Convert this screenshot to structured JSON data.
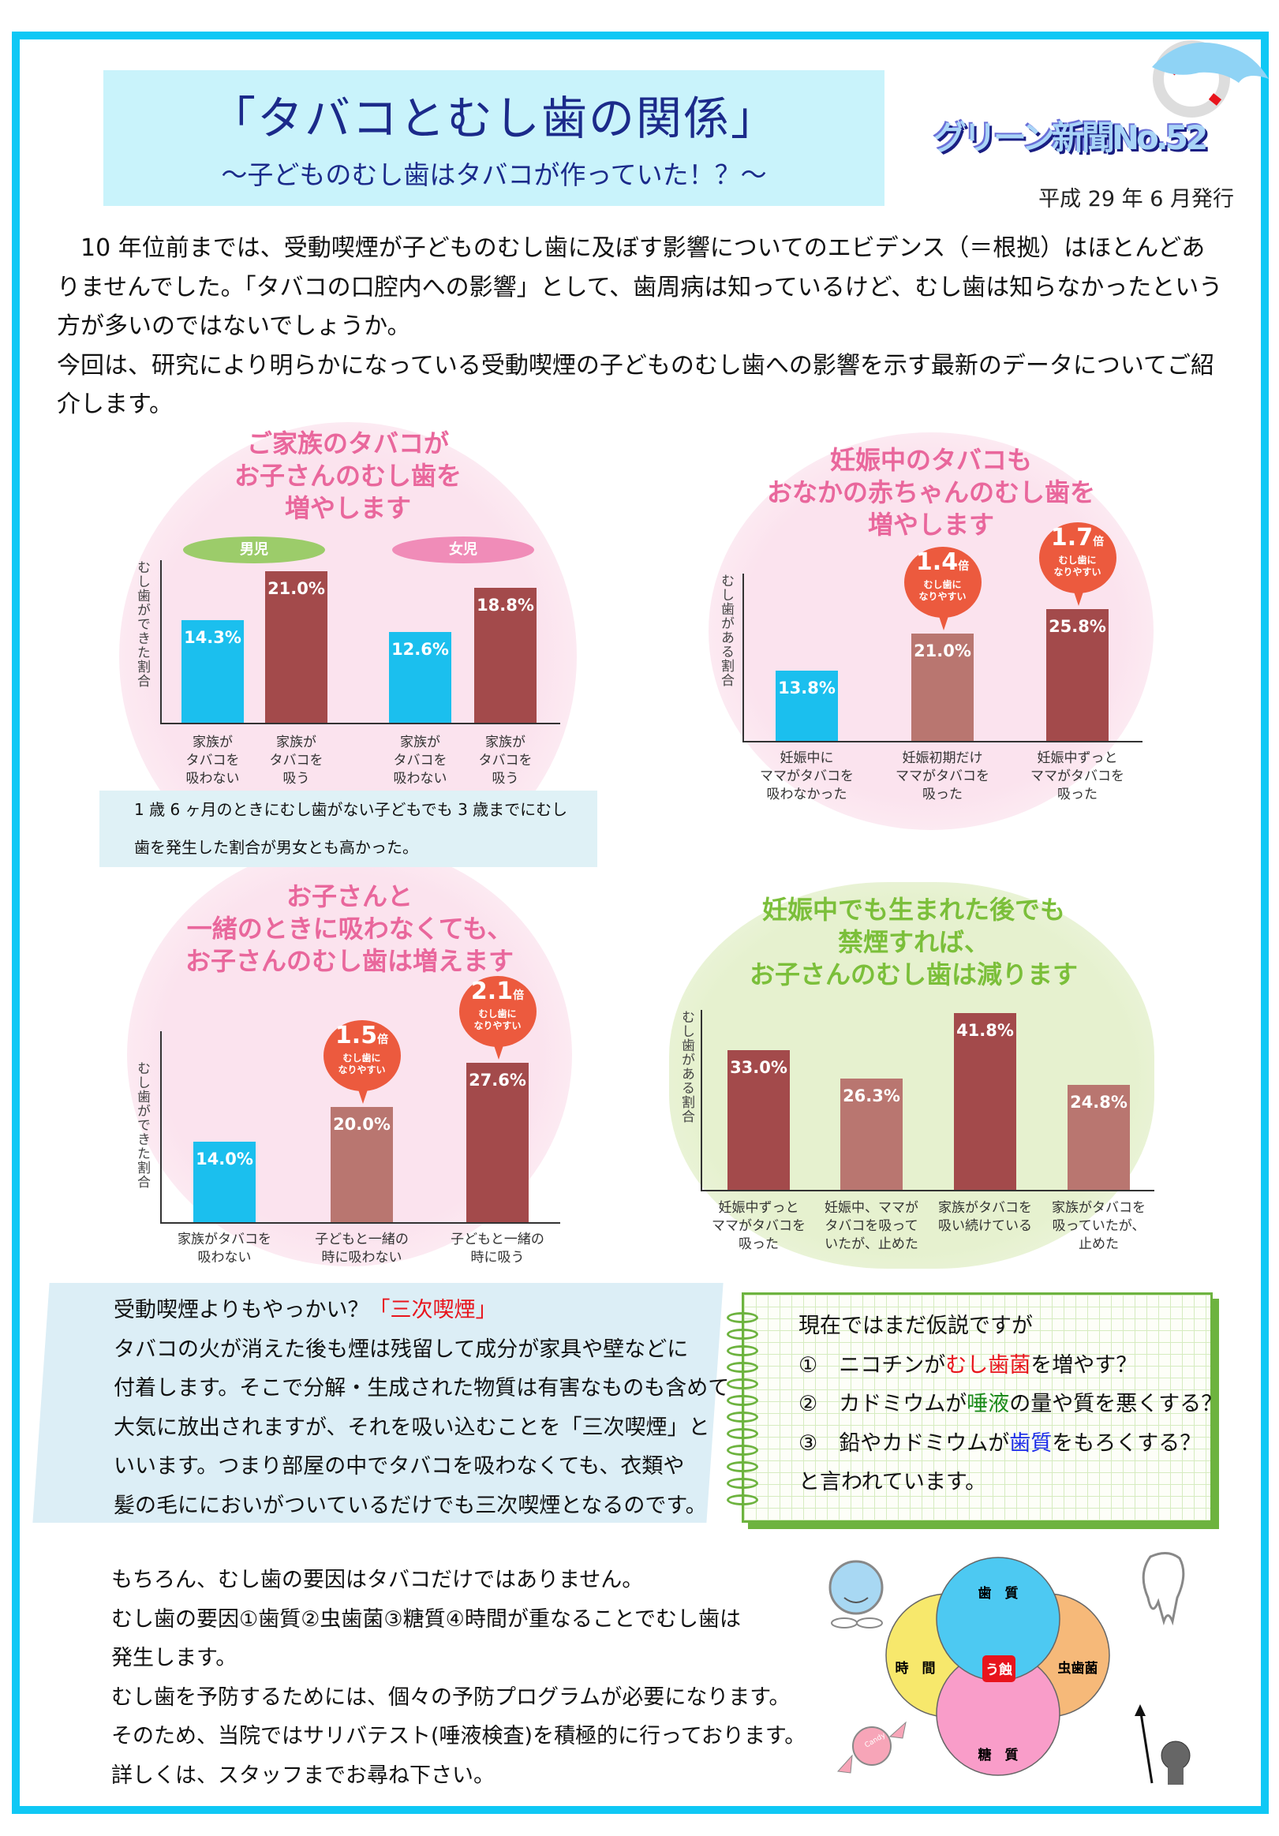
{
  "header": {
    "title": "「タバコとむし歯の関係」",
    "subtitle": "～子どものむし歯はタバコが作っていた！？～",
    "newsletter_name": "グリーン新聞No.52",
    "issue_date": "平成 29 年 6 月発行"
  },
  "intro": [
    "10 年位前までは、受動喫煙が子どものむし歯に及ぼす影響についてのエビデンス（＝根拠）はほとんどありませんでした。「タバコの口腔内への影響」として、歯周病は知っているけど、むし歯は知らなかったという方が多いのではないでしょうか。",
    "今回は、研究により明らかになっている受動喫煙の子どものむし歯への影響を示す最新のデータについてご紹介します。"
  ],
  "colors": {
    "blue_bar": "#1bbfee",
    "dark_bar": "#a34a4b",
    "light_bar": "#b97670",
    "bubble": "#ec5a3e",
    "frame": "#0fc8f5"
  },
  "chart_data": [
    {
      "type": "bar",
      "title": "ご家族のタバコが\nお子さんのむし歯を\n増やします",
      "ylabel": "むし歯ができた割合",
      "groups": [
        "男児",
        "女児"
      ],
      "categories": [
        "家族が\nタバコを\n吸わない",
        "家族が\nタバコを\n吸う",
        "家族が\nタバコを\n吸わない",
        "家族が\nタバコを\n吸う"
      ],
      "values": [
        14.3,
        21.0,
        12.6,
        18.8
      ],
      "value_labels": [
        "14.3%",
        "21.0%",
        "12.6%",
        "18.8%"
      ],
      "note": "1 歳 6 ヶ月のときにむし歯がない子どもでも 3 歳までにむし歯を発生した割合が男女とも高かった。",
      "note_lines": [
        "1 歳 6 ヶ月のときにむし歯がない子どもでも 3 歳までにむし",
        "歯を発生した割合が男女とも高かった。"
      ]
    },
    {
      "type": "bar",
      "title": "妊娠中のタバコも\nおなかの赤ちゃんのむし歯を\n増やします",
      "ylabel": "むし歯がある割合",
      "categories": [
        "妊娠中に\nママがタバコを\n吸わなかった",
        "妊娠初期だけ\nママがタバコを\n吸った",
        "妊娠中ずっと\nママがタバコを\n吸った"
      ],
      "values": [
        13.8,
        21.0,
        25.8
      ],
      "value_labels": [
        "13.8%",
        "21.0%",
        "25.8%"
      ],
      "annotations": [
        {
          "bar": 1,
          "multiplier": "1.4",
          "unit": "倍",
          "note": "むし歯に\nなりやすい"
        },
        {
          "bar": 2,
          "multiplier": "1.7",
          "unit": "倍",
          "note": "むし歯に\nなりやすい"
        }
      ]
    },
    {
      "type": "bar",
      "title": "お子さんと\n一緒のときに吸わなくても、\nお子さんのむし歯は増えます",
      "ylabel": "むし歯ができた割合",
      "categories": [
        "家族がタバコを\n吸わない",
        "子どもと一緒の\n時に吸わない",
        "子どもと一緒の\n時に吸う"
      ],
      "values": [
        14.0,
        20.0,
        27.6
      ],
      "value_labels": [
        "14.0%",
        "20.0%",
        "27.6%"
      ],
      "annotations": [
        {
          "bar": 1,
          "multiplier": "1.5",
          "unit": "倍",
          "note": "むし歯に\nなりやすい"
        },
        {
          "bar": 2,
          "multiplier": "2.1",
          "unit": "倍",
          "note": "むし歯に\nなりやすい"
        }
      ]
    },
    {
      "type": "bar",
      "title": "妊娠中でも生まれた後でも\n禁煙すれば、\nお子さんのむし歯は減ります",
      "ylabel": "むし歯がある割合",
      "categories": [
        "妊娠中ずっと\nママがタバコを\n吸った",
        "妊娠中、ママが\nタバコを吸って\nいたが、止めた",
        "家族がタバコを\n吸い続けている",
        "家族がタバコを\n吸っていたが、\n止めた"
      ],
      "values": [
        33.0,
        26.3,
        41.8,
        24.8
      ],
      "value_labels": [
        "33.0%",
        "26.3%",
        "41.8%",
        "24.8%"
      ]
    }
  ],
  "third_hand_smoke": {
    "lead": "受動喫煙よりもやっかい？",
    "highlight": "「三次喫煙」",
    "lines": [
      "タバコの火が消えた後も煙は残留して成分が家具や壁などに",
      "付着します。そこで分解・生成された物質は有害なものも含めて",
      "大気に放出されますが、それを吸い込むことを「三次喫煙」と",
      "いいます。つまり部屋の中でタバコを吸わなくても、衣類や",
      "髪の毛ににおいがついているだけでも三次喫煙となるのです。"
    ]
  },
  "hypotheses": {
    "intro": "現在ではまだ仮説ですが",
    "items": [
      {
        "num": "①",
        "pre": "ニコチンが",
        "key": "むし歯菌",
        "post": "を増やす？",
        "key_color": "#e8141c"
      },
      {
        "num": "②",
        "pre": "カドミウムが",
        "key": "唾液",
        "post": "の量や質を悪くする？",
        "key_color": "#1a8a1a"
      },
      {
        "num": "③",
        "pre": "鉛やカドミウムが",
        "key": "歯質",
        "post": "をもろくする？",
        "key_color": "#1a2ae8"
      }
    ],
    "outro": "と言われています。"
  },
  "closing": [
    "もちろん、むし歯の要因はタバコだけではありません。",
    "むし歯の要因①歯質②虫歯菌③糖質④時間が重なることでむし歯は",
    "発生します。",
    "むし歯を予防するためには、個々の予防プログラムが必要になります。",
    "そのため、当院ではサリバテスト(唾液検査)を積極的に行っております。",
    "詳しくは、スタッフまでお尋ね下さい。"
  ],
  "venn": {
    "top": "歯　質",
    "left": "時　間",
    "right": "虫歯菌",
    "bottom": "糖　質",
    "center": "う蝕",
    "candy_text": "Candy",
    "colors": {
      "top": "#12b8ee",
      "left": "#f5e13c",
      "right": "#f4a24d",
      "bottom": "#f77db8",
      "center": "#e8141c"
    }
  }
}
